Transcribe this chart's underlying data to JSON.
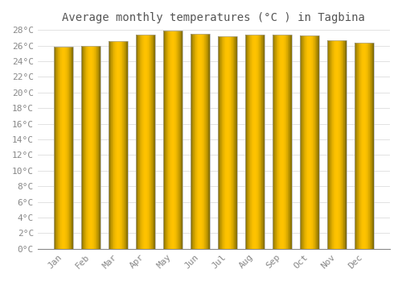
{
  "title": "Average monthly temperatures (°C ) in Tagbina",
  "months": [
    "Jan",
    "Feb",
    "Mar",
    "Apr",
    "May",
    "Jun",
    "Jul",
    "Aug",
    "Sep",
    "Oct",
    "Nov",
    "Dec"
  ],
  "temperatures": [
    25.8,
    26.0,
    26.6,
    27.4,
    27.9,
    27.5,
    27.2,
    27.4,
    27.4,
    27.3,
    26.7,
    26.4
  ],
  "ylim": [
    0,
    28
  ],
  "yticks": [
    0,
    2,
    4,
    6,
    8,
    10,
    12,
    14,
    16,
    18,
    20,
    22,
    24,
    26,
    28
  ],
  "bar_color_center": "#FFD966",
  "bar_color_edge": "#F0A500",
  "background_color": "#FFFFFF",
  "grid_color": "#DDDDDD",
  "title_fontsize": 10,
  "tick_fontsize": 8,
  "font_color": "#888888",
  "title_color": "#555555"
}
